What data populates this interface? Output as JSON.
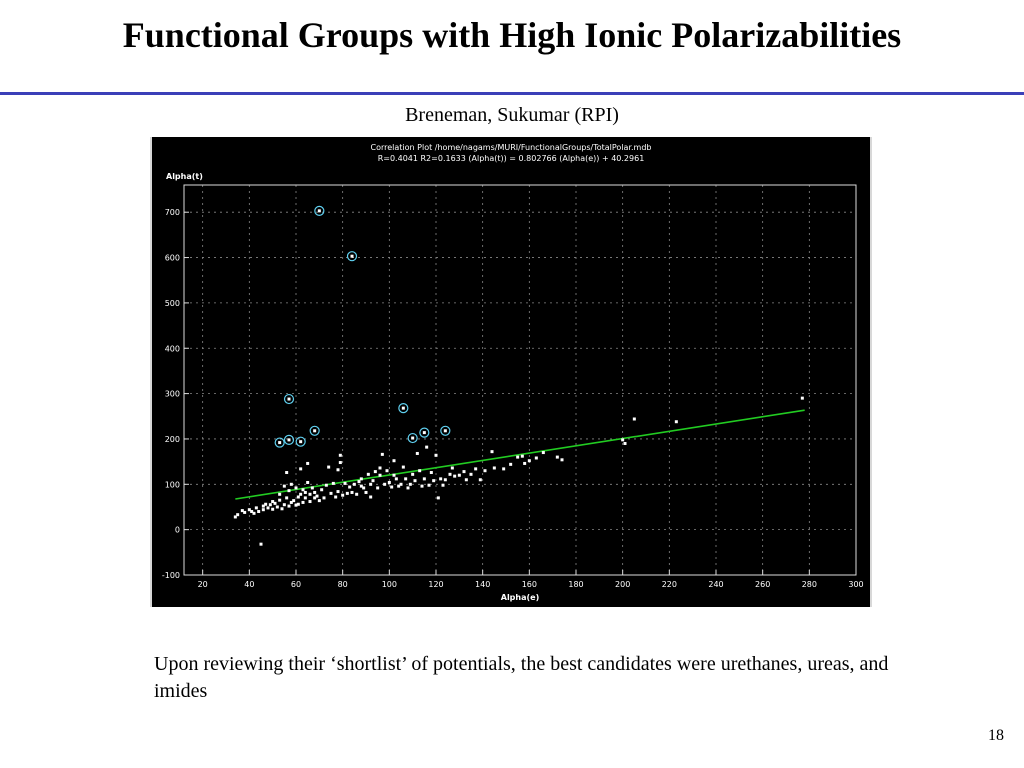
{
  "slide": {
    "title": "Functional Groups with High Ionic Polarizabilities",
    "subtitle": "Breneman, Sukumar (RPI)",
    "caption": "Upon reviewing their ‘shortlist’ of potentials, the best candidates were urethanes, ureas, and imides",
    "page_number": "18"
  },
  "chart_data": {
    "type": "scatter",
    "title": "Correlation Plot /home/nagams/MURI/FunctionalGroups/TotalPolar.mdb",
    "subtitle": "R=0.4041 R2=0.1633    (Alpha(t)) = 0.802766 (Alpha(e)) + 40.2961",
    "xlabel": "Alpha(e)",
    "ylabel": "Alpha(t)",
    "xlim": [
      12,
      300
    ],
    "ylim": [
      -100,
      760
    ],
    "xticks": [
      20,
      40,
      60,
      80,
      100,
      120,
      140,
      160,
      180,
      200,
      220,
      240,
      260,
      280,
      300
    ],
    "yticks": [
      -100,
      0,
      100,
      200,
      300,
      400,
      500,
      600,
      700
    ],
    "grid": true,
    "colors": {
      "background": "#000000",
      "points": "#ffffff",
      "fit_line": "#22cc22",
      "highlight_ring": "#5fd0f0",
      "text": "#ffffff",
      "grid": "#888888"
    },
    "fit_line": {
      "slope": 0.802766,
      "intercept": 40.2961,
      "x_range": [
        34,
        278
      ]
    },
    "highlighted_points": [
      [
        70,
        703
      ],
      [
        84,
        603
      ],
      [
        57,
        288
      ],
      [
        53,
        192
      ],
      [
        57,
        198
      ],
      [
        62,
        194
      ],
      [
        68,
        218
      ],
      [
        106,
        268
      ],
      [
        110,
        202
      ],
      [
        115,
        214
      ],
      [
        124,
        218
      ]
    ],
    "points": [
      [
        34,
        28
      ],
      [
        35,
        33
      ],
      [
        37,
        42
      ],
      [
        38,
        38
      ],
      [
        40,
        44
      ],
      [
        41,
        40
      ],
      [
        42,
        36
      ],
      [
        43,
        48
      ],
      [
        44,
        40
      ],
      [
        45,
        -32
      ],
      [
        46,
        52
      ],
      [
        46,
        44
      ],
      [
        47,
        56
      ],
      [
        48,
        48
      ],
      [
        49,
        55
      ],
      [
        50,
        45
      ],
      [
        50,
        62
      ],
      [
        51,
        58
      ],
      [
        52,
        50
      ],
      [
        53,
        65
      ],
      [
        53,
        78
      ],
      [
        54,
        46
      ],
      [
        55,
        55
      ],
      [
        55,
        96
      ],
      [
        56,
        70
      ],
      [
        56,
        126
      ],
      [
        57,
        52
      ],
      [
        57,
        86
      ],
      [
        58,
        100
      ],
      [
        58,
        60
      ],
      [
        59,
        64
      ],
      [
        60,
        54
      ],
      [
        60,
        92
      ],
      [
        61,
        72
      ],
      [
        61,
        56
      ],
      [
        62,
        78
      ],
      [
        62,
        134
      ],
      [
        63,
        60
      ],
      [
        63,
        88
      ],
      [
        64,
        70
      ],
      [
        64,
        82
      ],
      [
        65,
        104
      ],
      [
        65,
        146
      ],
      [
        66,
        62
      ],
      [
        66,
        78
      ],
      [
        67,
        92
      ],
      [
        68,
        70
      ],
      [
        68,
        82
      ],
      [
        69,
        74
      ],
      [
        70,
        64
      ],
      [
        71,
        88
      ],
      [
        72,
        70
      ],
      [
        73,
        98
      ],
      [
        74,
        138
      ],
      [
        75,
        80
      ],
      [
        76,
        102
      ],
      [
        77,
        72
      ],
      [
        78,
        132
      ],
      [
        78,
        84
      ],
      [
        79,
        148
      ],
      [
        79,
        164
      ],
      [
        80,
        76
      ],
      [
        81,
        102
      ],
      [
        82,
        80
      ],
      [
        83,
        94
      ],
      [
        84,
        82
      ],
      [
        85,
        100
      ],
      [
        86,
        78
      ],
      [
        87,
        106
      ],
      [
        88,
        96
      ],
      [
        88,
        112
      ],
      [
        89,
        92
      ],
      [
        90,
        82
      ],
      [
        91,
        122
      ],
      [
        92,
        100
      ],
      [
        92,
        72
      ],
      [
        93,
        108
      ],
      [
        94,
        128
      ],
      [
        95,
        92
      ],
      [
        96,
        120
      ],
      [
        96,
        136
      ],
      [
        97,
        166
      ],
      [
        98,
        100
      ],
      [
        99,
        130
      ],
      [
        100,
        104
      ],
      [
        101,
        94
      ],
      [
        102,
        120
      ],
      [
        102,
        152
      ],
      [
        103,
        112
      ],
      [
        104,
        96
      ],
      [
        105,
        100
      ],
      [
        106,
        138
      ],
      [
        107,
        112
      ],
      [
        108,
        92
      ],
      [
        109,
        100
      ],
      [
        110,
        122
      ],
      [
        111,
        108
      ],
      [
        112,
        168
      ],
      [
        113,
        130
      ],
      [
        114,
        96
      ],
      [
        115,
        112
      ],
      [
        116,
        182
      ],
      [
        117,
        98
      ],
      [
        118,
        126
      ],
      [
        119,
        108
      ],
      [
        120,
        164
      ],
      [
        121,
        70
      ],
      [
        122,
        112
      ],
      [
        123,
        98
      ],
      [
        124,
        110
      ],
      [
        126,
        122
      ],
      [
        127,
        136
      ],
      [
        128,
        118
      ],
      [
        130,
        120
      ],
      [
        132,
        128
      ],
      [
        133,
        110
      ],
      [
        135,
        122
      ],
      [
        137,
        134
      ],
      [
        139,
        110
      ],
      [
        141,
        130
      ],
      [
        144,
        172
      ],
      [
        145,
        136
      ],
      [
        149,
        134
      ],
      [
        152,
        144
      ],
      [
        155,
        160
      ],
      [
        157,
        162
      ],
      [
        158,
        146
      ],
      [
        160,
        152
      ],
      [
        163,
        158
      ],
      [
        166,
        170
      ],
      [
        172,
        160
      ],
      [
        174,
        154
      ],
      [
        200,
        198
      ],
      [
        201,
        190
      ],
      [
        205,
        244
      ],
      [
        223,
        238
      ],
      [
        277,
        290
      ]
    ]
  }
}
